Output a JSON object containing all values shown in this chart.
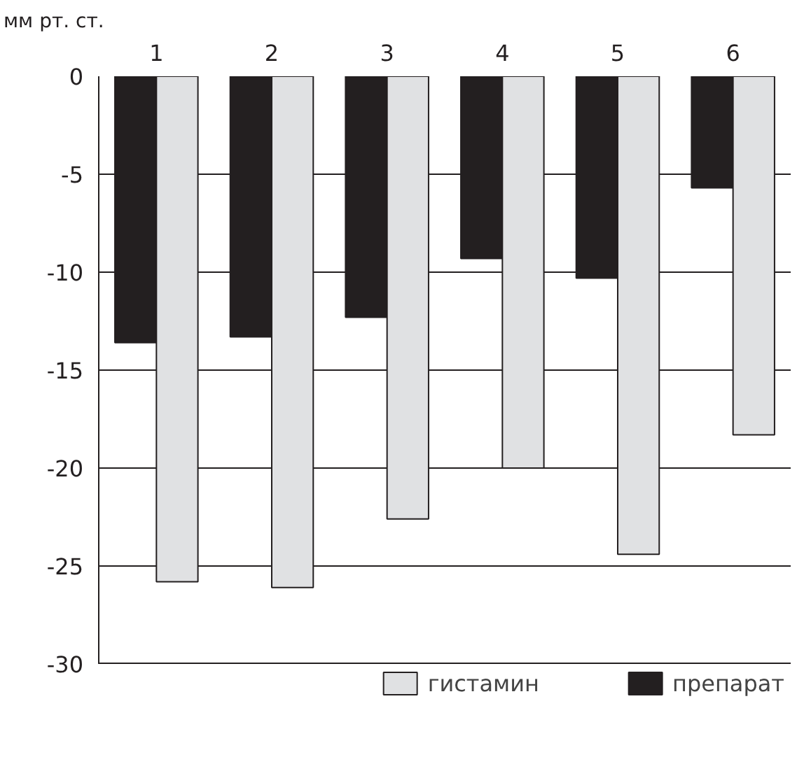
{
  "chart_data": {
    "type": "bar",
    "ylabel": "мм рт. ст.",
    "categories": [
      "1",
      "2",
      "3",
      "4",
      "5",
      "6"
    ],
    "series": [
      {
        "name": "препарат",
        "color": "#231f20",
        "values": [
          -13.6,
          -13.3,
          -12.3,
          -9.3,
          -10.3,
          -5.7
        ]
      },
      {
        "name": "гистамин",
        "color": "#e0e1e3",
        "values": [
          -25.8,
          -26.1,
          -22.6,
          -20.0,
          -24.4,
          -18.3
        ]
      }
    ],
    "ylim": [
      -30,
      0
    ],
    "yticks": [
      0,
      -5,
      -10,
      -15,
      -20,
      -25,
      -30
    ],
    "grid": "y",
    "legend": "bottom"
  }
}
